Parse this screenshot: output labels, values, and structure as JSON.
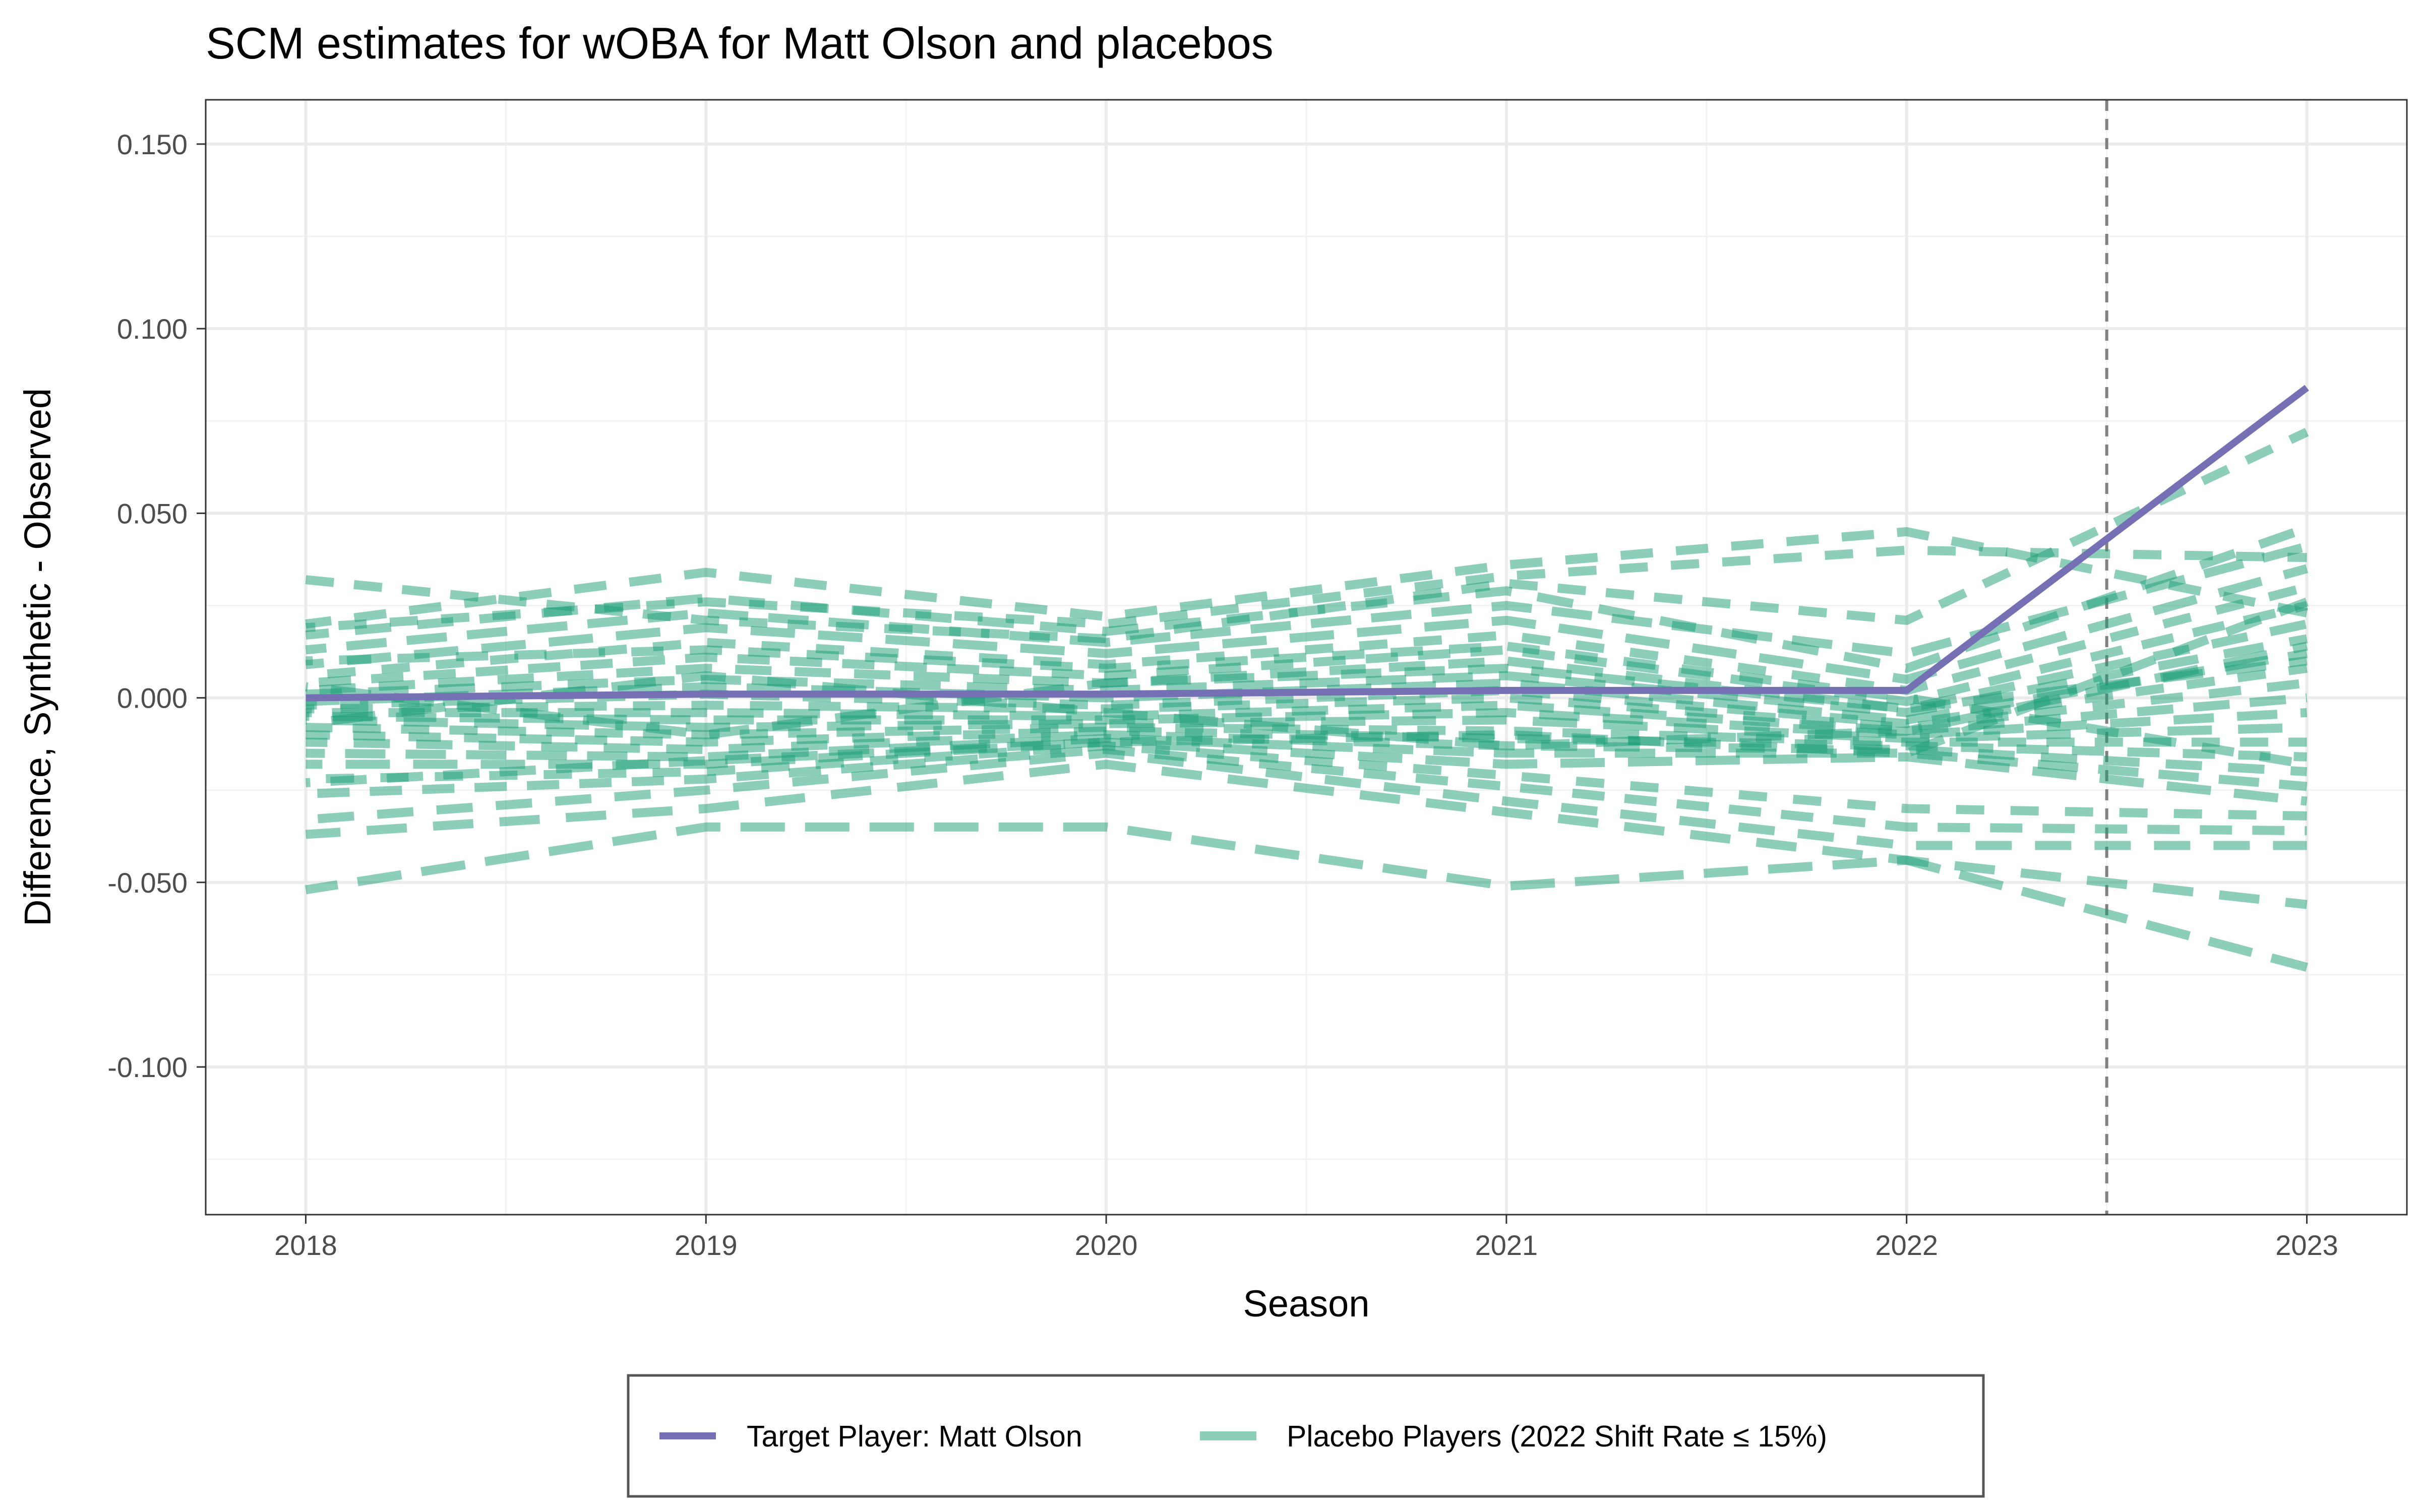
{
  "chart_data": {
    "type": "line",
    "title": "SCM estimates for wOBA for Matt Olson and placebos",
    "xlabel": "Season",
    "ylabel": "Difference, Synthetic - Observed",
    "xlim": [
      2017.75,
      2023.25
    ],
    "ylim": [
      -0.14,
      0.162
    ],
    "x_ticks": [
      2018,
      2019,
      2020,
      2021,
      2022,
      2023
    ],
    "x_tick_labels": [
      "2018",
      "2019",
      "2020",
      "2021",
      "2022",
      "2023"
    ],
    "y_ticks": [
      0.15,
      0.1,
      0.05,
      0.0,
      -0.05,
      -0.1
    ],
    "y_tick_labels": [
      "0.150",
      "0.100",
      "0.050",
      "0.000",
      "-0.050",
      "-0.100"
    ],
    "treatment_line_x": 2022.5,
    "grid": true,
    "legend_position": "bottom",
    "target": {
      "name": "Target Player: Matt Olson",
      "color": "#7570b3",
      "x": [
        2018,
        2019,
        2020,
        2021,
        2022,
        2023
      ],
      "values": [
        0.0,
        0.001,
        0.001,
        0.002,
        0.002,
        0.084
      ]
    },
    "placebos": {
      "name": "Placebo Players (2022 Shift Rate ≤ 15%)",
      "color": "#1b9e77",
      "x": [
        2018,
        2019,
        2020,
        2021,
        2022,
        2023
      ],
      "series": [
        {
          "values": [
            0.032,
            0.021,
            0.016,
            0.031,
            0.021,
            0.072
          ]
        },
        {
          "values": [
            0.02,
            0.034,
            0.022,
            0.036,
            0.045,
            0.023
          ]
        },
        {
          "values": [
            0.017,
            0.027,
            0.018,
            0.029,
            0.008,
            0.046
          ]
        },
        {
          "values": [
            0.013,
            0.023,
            0.015,
            0.025,
            0.012,
            0.041
          ]
        },
        {
          "values": [
            0.009,
            0.019,
            0.012,
            0.021,
            0.005,
            0.035
          ]
        },
        {
          "values": [
            0.006,
            0.015,
            0.009,
            0.017,
            0.002,
            0.03
          ]
        },
        {
          "values": [
            0.004,
            0.011,
            0.006,
            0.013,
            -0.001,
            0.025
          ]
        },
        {
          "values": [
            0.002,
            0.008,
            0.004,
            0.01,
            -0.003,
            0.02
          ]
        },
        {
          "values": [
            0.001,
            0.005,
            0.002,
            0.006,
            -0.004,
            0.016
          ]
        },
        {
          "values": [
            -0.001,
            0.003,
            0.0,
            0.004,
            -0.006,
            0.012
          ]
        },
        {
          "values": [
            -0.002,
            0.001,
            -0.002,
            0.002,
            -0.007,
            0.008
          ]
        },
        {
          "values": [
            -0.003,
            -0.002,
            -0.003,
            0.0,
            -0.008,
            0.004
          ]
        },
        {
          "values": [
            -0.004,
            -0.004,
            -0.005,
            -0.002,
            -0.009,
            0.0
          ]
        },
        {
          "values": [
            -0.005,
            -0.006,
            -0.006,
            -0.004,
            -0.01,
            -0.004
          ]
        },
        {
          "values": [
            -0.006,
            -0.008,
            -0.007,
            -0.006,
            -0.011,
            -0.008
          ]
        },
        {
          "values": [
            -0.008,
            -0.01,
            -0.008,
            -0.009,
            -0.012,
            -0.012
          ]
        },
        {
          "values": [
            -0.01,
            -0.012,
            -0.009,
            -0.011,
            -0.013,
            -0.016
          ]
        },
        {
          "values": [
            -0.012,
            -0.014,
            -0.01,
            -0.013,
            -0.014,
            -0.02
          ]
        },
        {
          "values": [
            -0.015,
            -0.016,
            -0.011,
            -0.015,
            -0.015,
            -0.024
          ]
        },
        {
          "values": [
            -0.018,
            -0.018,
            -0.012,
            -0.018,
            -0.016,
            -0.028
          ]
        },
        {
          "values": [
            -0.022,
            -0.02,
            -0.013,
            -0.021,
            -0.03,
            -0.032
          ]
        },
        {
          "values": [
            -0.026,
            -0.022,
            -0.014,
            -0.024,
            -0.035,
            -0.036
          ]
        },
        {
          "values": [
            -0.033,
            -0.025,
            -0.015,
            -0.028,
            -0.04,
            -0.04
          ]
        },
        {
          "values": [
            -0.037,
            -0.03,
            -0.018,
            -0.031,
            -0.044,
            -0.056
          ]
        },
        {
          "values": [
            -0.052,
            -0.035,
            -0.035,
            -0.051,
            -0.044,
            -0.073
          ]
        },
        {
          "values": [
            0.019,
            0.026,
            0.02,
            0.033,
            0.04,
            0.038
          ]
        },
        {
          "values": [
            0.01,
            0.013,
            0.008,
            0.014,
            0.0,
            -0.018
          ]
        },
        {
          "values": [
            -0.023,
            -0.017,
            -0.012,
            -0.01,
            -0.015,
            0.026
          ]
        },
        {
          "values": [
            0.003,
            -0.01,
            0.004,
            0.008,
            -0.003,
            0.01
          ]
        },
        {
          "values": [
            -0.007,
            0.006,
            -0.004,
            -0.013,
            -0.009,
            0.014
          ]
        }
      ]
    }
  }
}
